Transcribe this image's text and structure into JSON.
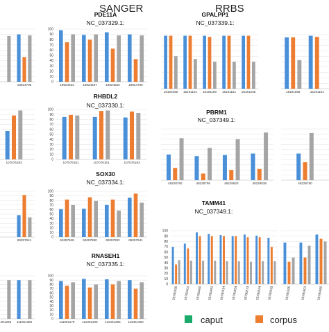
{
  "sections": {
    "left": "SANGER",
    "right": "RRBS"
  },
  "colors": {
    "caput": "#4a90d9",
    "corpus": "#ed7d31",
    "third": "#a5a5a5"
  },
  "legend": {
    "caput": "caput",
    "corpus": "corpus"
  },
  "chart_data": [
    {
      "id": "cutL1",
      "type": "bar",
      "gene": "",
      "chrom": "",
      "ylim": [
        0,
        100
      ],
      "ticks": [],
      "categories": [
        "",
        "18924706"
      ],
      "series": [
        [
          93,
          90
        ],
        [
          0,
          47
        ],
        [
          87,
          88
        ]
      ]
    },
    {
      "id": "pde11a",
      "type": "bar",
      "gene": "PDE11A",
      "chrom": "NC_037329.1:",
      "ylim": [
        0,
        100
      ],
      "ticks": [
        "0",
        "10",
        "20",
        "30",
        "40",
        "50",
        "60",
        "70",
        "80",
        "90",
        "100"
      ],
      "categories": [
        "18924633",
        "18924637",
        "18924652",
        "18924706"
      ],
      "series": [
        [
          98,
          89,
          94,
          90
        ],
        [
          75,
          80,
          63,
          43
        ],
        [
          90,
          90,
          88,
          88
        ]
      ]
    },
    {
      "id": "gpalpp1",
      "type": "bar",
      "gene": "GPALPP1",
      "chrom": "NC_037339.1:",
      "ylim": [
        0,
        100
      ],
      "ticks": [],
      "categories": [
        "15191056",
        "15191101",
        "15191160",
        "15191181",
        "15191235"
      ],
      "series": [
        [
          98,
          98,
          98,
          98,
          98
        ],
        [
          98,
          98,
          96,
          98,
          98
        ],
        [
          60,
          55,
          50,
          50,
          50
        ]
      ]
    },
    {
      "id": "cutR1",
      "type": "bar",
      "gene": "",
      "chrom": "",
      "ylim": [
        0,
        100
      ],
      "ticks": [],
      "categories": [
        "15191056",
        "15191101"
      ],
      "series": [
        [
          95,
          98
        ],
        [
          95,
          96
        ],
        [
          53,
          0
        ]
      ]
    },
    {
      "id": "cutL2",
      "type": "bar",
      "gene": "",
      "chrom": "",
      "ylim": [
        0,
        100
      ],
      "ticks": [],
      "categories": [
        "107076193"
      ],
      "series": [
        [
          57
        ],
        [
          88
        ],
        [
          98
        ]
      ]
    },
    {
      "id": "rhbdl2",
      "type": "bar",
      "gene": "RHBDL2",
      "chrom": "NC_037330.1:",
      "ylim": [
        0,
        100
      ],
      "ticks": [
        "0",
        "10",
        "20",
        "30",
        "40",
        "50",
        "60",
        "70",
        "80",
        "90",
        "100"
      ],
      "categories": [
        "107076151",
        "107076161",
        "107076193"
      ],
      "series": [
        [
          85,
          85,
          84
        ],
        [
          89,
          97,
          96
        ],
        [
          88,
          98,
          93
        ]
      ]
    },
    {
      "id": "pbrm1",
      "type": "bar",
      "gene": "PBRM1",
      "chrom": "NC_037349.1:",
      "ylim": [
        0,
        100
      ],
      "ticks": [],
      "categories": [
        "48228780",
        "48228795",
        "48228820",
        "48228838"
      ],
      "series": [
        [
          50,
          47,
          49,
          52
        ],
        [
          24,
          13,
          20,
          22
        ],
        [
          82,
          63,
          80,
          93
        ]
      ]
    },
    {
      "id": "cutR2",
      "type": "bar",
      "gene": "",
      "chrom": "",
      "ylim": [
        0,
        100
      ],
      "ticks": [],
      "categories": [
        "48228780"
      ],
      "series": [
        [
          52
        ],
        [
          35
        ],
        [
          92
        ]
      ]
    },
    {
      "id": "cutL3",
      "type": "bar",
      "gene": "",
      "chrom": "",
      "ylim": [
        0,
        100
      ],
      "ticks": [],
      "categories": [
        "",
        "69297941"
      ],
      "series": [
        [
          0,
          48
        ],
        [
          0,
          92
        ],
        [
          0,
          43
        ]
      ]
    },
    {
      "id": "sox30",
      "type": "bar",
      "gene": "SOX30",
      "chrom": "NC_037334.1:",
      "ylim": [
        0,
        100
      ],
      "ticks": [
        "0",
        "10",
        "20",
        "30",
        "40",
        "50",
        "60",
        "70",
        "80",
        "90",
        "100"
      ],
      "categories": [
        "69297848",
        "69297880",
        "69297902",
        "69297941"
      ],
      "series": [
        [
          61,
          62,
          70,
          86
        ],
        [
          82,
          87,
          82,
          95
        ],
        [
          70,
          79,
          58,
          75
        ]
      ]
    },
    {
      "id": "tamm41",
      "type": "bar",
      "gene": "TAMM41",
      "chrom": "NC_037349.1:",
      "ylim": [
        0,
        100
      ],
      "ticks": [
        "0",
        "10",
        "20",
        "30",
        "40",
        "50",
        "60",
        "70",
        "80",
        "90",
        "100"
      ],
      "categories": [
        "55793395",
        "55793401",
        "55793480",
        "55793481",
        "55793514",
        "55793554",
        "55793573",
        "55793624",
        "55793633"
      ],
      "series": [
        [
          70,
          76,
          97,
          94,
          92,
          90,
          93,
          91,
          87
        ],
        [
          37,
          67,
          90,
          90,
          90,
          90,
          88,
          88,
          70
        ],
        [
          45,
          44,
          44,
          44,
          43,
          43,
          42,
          43,
          43
        ]
      ]
    },
    {
      "id": "cutR3",
      "type": "bar",
      "gene": "",
      "chrom": "",
      "ylim": [
        0,
        100
      ],
      "ticks": [],
      "categories": [
        "55793395",
        "55793401",
        "55793480"
      ],
      "series": [
        [
          78,
          78,
          93
        ],
        [
          42,
          50,
          85
        ],
        [
          50,
          72,
          80
        ]
      ]
    },
    {
      "id": "cutL4",
      "type": "bar",
      "gene": "",
      "chrom": "",
      "ylim": [
        0,
        100
      ],
      "ticks": [],
      "categories": [
        "111001285",
        "111001360"
      ],
      "series": [
        [
          85,
          90
        ],
        [
          0,
          0
        ],
        [
          90,
          90
        ]
      ]
    },
    {
      "id": "rnaseh1",
      "type": "bar",
      "gene": "RNASEH1",
      "chrom": "NC_037335.1:",
      "ylim": [
        0,
        100
      ],
      "ticks": [
        "0",
        "10",
        "20",
        "30",
        "40",
        "50",
        "60",
        "70",
        "80",
        "90",
        "100"
      ],
      "categories": [
        "111001179",
        "111001206",
        "111001285",
        "111001360"
      ],
      "series": [
        [
          88,
          93,
          92,
          90
        ],
        [
          77,
          73,
          80,
          70
        ],
        [
          85,
          80,
          88,
          85
        ]
      ]
    }
  ]
}
